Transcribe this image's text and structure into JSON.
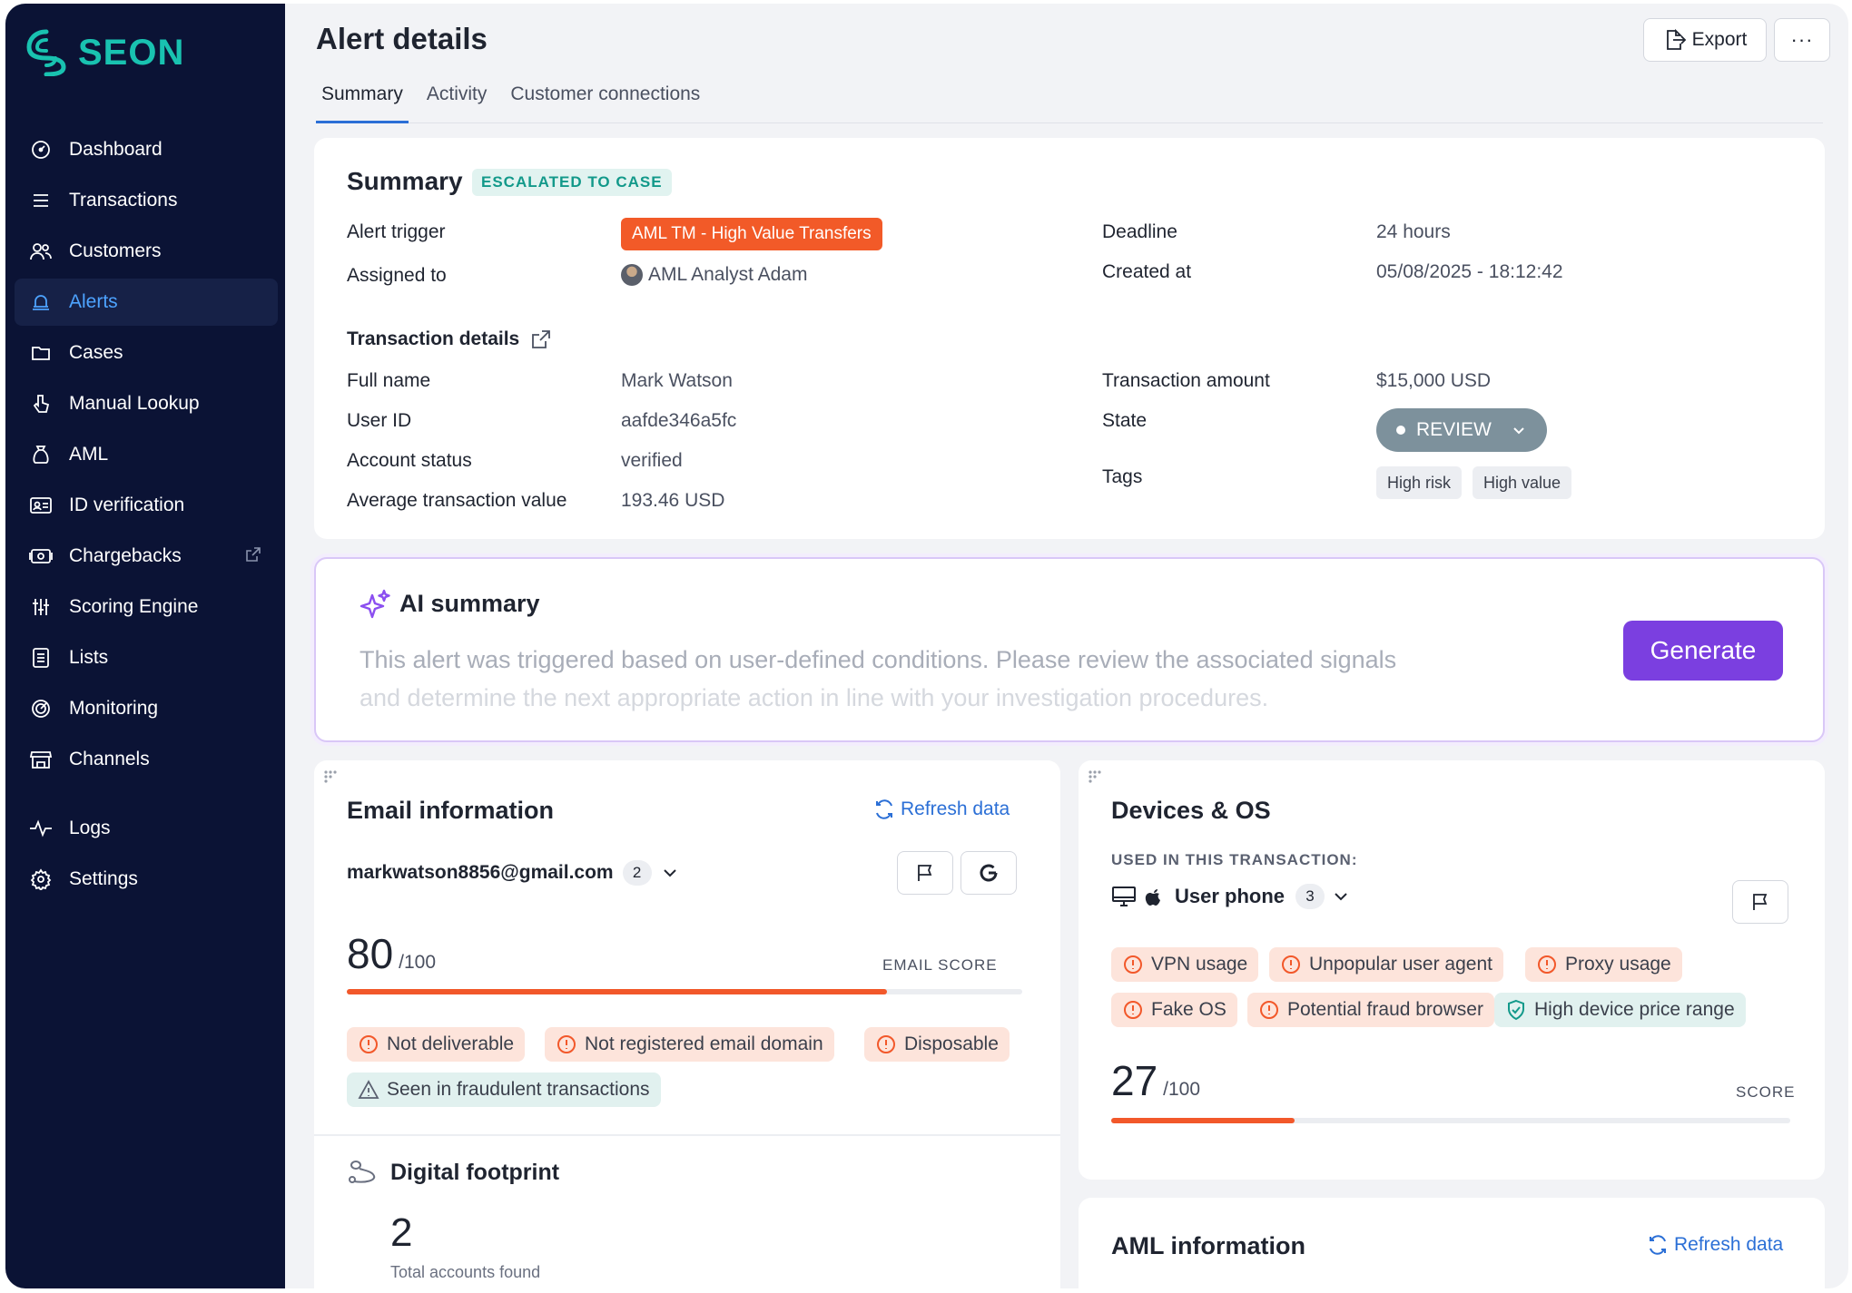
{
  "app": {
    "brand": "SEON",
    "brand_color": "#19c2b0"
  },
  "sidebar": {
    "items": [
      {
        "label": "Dashboard",
        "icon": "dashboard-icon"
      },
      {
        "label": "Transactions",
        "icon": "list-icon"
      },
      {
        "label": "Customers",
        "icon": "users-icon"
      },
      {
        "label": "Alerts",
        "icon": "bell-icon",
        "active": true
      },
      {
        "label": "Cases",
        "icon": "folder-icon"
      },
      {
        "label": "Manual Lookup",
        "icon": "pointer-icon"
      },
      {
        "label": "AML",
        "icon": "money-bag-icon"
      },
      {
        "label": "ID verification",
        "icon": "id-card-icon"
      },
      {
        "label": "Chargebacks",
        "icon": "chargeback-icon",
        "external": true
      },
      {
        "label": "Scoring Engine",
        "icon": "sliders-icon"
      },
      {
        "label": "Lists",
        "icon": "lists-icon"
      },
      {
        "label": "Monitoring",
        "icon": "radar-icon"
      },
      {
        "label": "Channels",
        "icon": "store-icon"
      }
    ],
    "bottom_items": [
      {
        "label": "Logs",
        "icon": "pulse-icon"
      },
      {
        "label": "Settings",
        "icon": "gear-icon"
      }
    ]
  },
  "header": {
    "title": "Alert details",
    "export_label": "Export",
    "more_label": "···",
    "tabs": [
      {
        "label": "Summary",
        "active": true
      },
      {
        "label": "Activity"
      },
      {
        "label": "Customer connections"
      }
    ]
  },
  "summary": {
    "title": "Summary",
    "status_badge": "ESCALATED TO CASE",
    "alert_trigger_label": "Alert trigger",
    "alert_trigger_value": "AML TM - High Value Transfers",
    "assigned_to_label": "Assigned to",
    "assigned_to_value": "AML Analyst Adam",
    "deadline_label": "Deadline",
    "deadline_value": "24 hours",
    "created_at_label": "Created at",
    "created_at_value": "05/08/2025 - 18:12:42",
    "transaction_details_label": "Transaction details",
    "full_name_label": "Full name",
    "full_name_value": "Mark Watson",
    "user_id_label": "User ID",
    "user_id_value": "aafde346a5fc",
    "account_status_label": "Account status",
    "account_status_value": "verified",
    "avg_tx_label": "Average transaction value",
    "avg_tx_value": "193.46 USD",
    "tx_amount_label": "Transaction amount",
    "tx_amount_value": "$15,000 USD",
    "state_label": "State",
    "state_value": "REVIEW",
    "tags_label": "Tags",
    "tags": [
      "High risk",
      "High value"
    ]
  },
  "ai_summary": {
    "title": "AI summary",
    "text_line1": "This alert was triggered based on user-defined conditions. Please review the associated signals",
    "text_line2": "and determine the next appropriate action in line with your investigation procedures.",
    "generate_label": "Generate",
    "accent": "#7b3fe0"
  },
  "email_info": {
    "title": "Email information",
    "refresh_label": "Refresh data",
    "email": "markwatson8856@gmail.com",
    "email_count": "2",
    "score": "80",
    "score_max": "/100",
    "score_fraction": 0.8,
    "score_label": "EMAIL SCORE",
    "flags": [
      {
        "label": "Not deliverable",
        "type": "warn"
      },
      {
        "label": "Not registered email domain",
        "type": "warn"
      },
      {
        "label": "Disposable",
        "type": "warn"
      },
      {
        "label": "Seen in fraudulent transactions",
        "type": "info"
      }
    ]
  },
  "digital_footprint": {
    "title": "Digital footprint",
    "count": "2",
    "count_label": "Total accounts found"
  },
  "devices": {
    "title": "Devices & OS",
    "subtitle": "USED IN THIS TRANSACTION:",
    "device_name": "User phone",
    "device_count": "3",
    "flags": [
      {
        "label": "VPN usage",
        "type": "warn"
      },
      {
        "label": "Unpopular user agent",
        "type": "warn"
      },
      {
        "label": "Proxy usage",
        "type": "warn"
      },
      {
        "label": "Fake OS",
        "type": "warn"
      },
      {
        "label": "Potential fraud browser",
        "type": "warn"
      },
      {
        "label": "High device price range",
        "type": "info"
      }
    ],
    "score": "27",
    "score_max": "/100",
    "score_fraction": 0.27,
    "score_label": "SCORE"
  },
  "aml_info": {
    "title": "AML information",
    "refresh_label": "Refresh data"
  }
}
